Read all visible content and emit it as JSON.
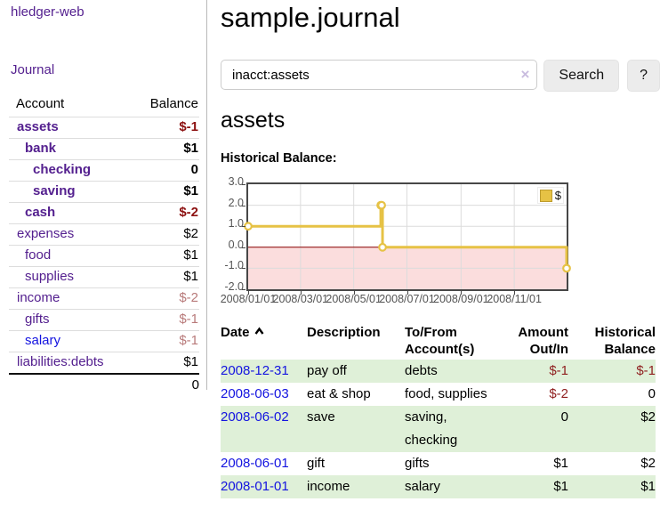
{
  "sidebar": {
    "brand": "hledger-web",
    "nav_journal": "Journal",
    "columns": {
      "account": "Account",
      "balance": "Balance"
    },
    "rows": [
      {
        "account": "assets",
        "balance": "$-1",
        "depth": 1,
        "emphasis": true,
        "balance_class": "neg",
        "link": "visited"
      },
      {
        "account": "bank",
        "balance": "$1",
        "depth": 2,
        "emphasis": true,
        "balance_class": "",
        "link": "visited"
      },
      {
        "account": "checking",
        "balance": "0",
        "depth": 3,
        "emphasis": true,
        "balance_class": "",
        "link": "visited"
      },
      {
        "account": "saving",
        "balance": "$1",
        "depth": 3,
        "emphasis": true,
        "balance_class": "",
        "link": "visited"
      },
      {
        "account": "cash",
        "balance": "$-2",
        "depth": 2,
        "emphasis": true,
        "balance_class": "neg",
        "link": "visited"
      },
      {
        "account": "expenses",
        "balance": "$2",
        "depth": 1,
        "emphasis": false,
        "balance_class": "",
        "link": "visited"
      },
      {
        "account": "food",
        "balance": "$1",
        "depth": 2,
        "emphasis": false,
        "balance_class": "",
        "link": "visited"
      },
      {
        "account": "supplies",
        "balance": "$1",
        "depth": 2,
        "emphasis": false,
        "balance_class": "",
        "link": "visited"
      },
      {
        "account": "income",
        "balance": "$-2",
        "depth": 1,
        "emphasis": false,
        "balance_class": "negmuted",
        "link": "visited"
      },
      {
        "account": "gifts",
        "balance": "$-1",
        "depth": 2,
        "emphasis": false,
        "balance_class": "negmuted",
        "link": "visited"
      },
      {
        "account": "salary",
        "balance": "$-1",
        "depth": 2,
        "emphasis": false,
        "balance_class": "negmuted",
        "link": "unvisited"
      },
      {
        "account": "liabilities:debts",
        "balance": "$1",
        "depth": 1,
        "emphasis": false,
        "balance_class": "",
        "link": "visited"
      }
    ],
    "total": "0"
  },
  "header": {
    "title": "sample.journal"
  },
  "search": {
    "value": "inacct:assets",
    "clear_icon": "×",
    "button_label": "Search",
    "help_label": "?"
  },
  "page": {
    "heading": "assets",
    "chart_label": "Historical Balance:"
  },
  "chart_data": {
    "type": "line",
    "title": "Historical Balance",
    "step": true,
    "grid": true,
    "legend": [
      {
        "label": "$",
        "color": "#e6c245"
      }
    ],
    "legend_position": "top-right",
    "ylim": [
      -2,
      3
    ],
    "yticks": [
      3.0,
      2.0,
      1.0,
      0.0,
      -1.0,
      -2.0
    ],
    "ytick_labels": [
      "3.0",
      "2.0",
      "1.0",
      "0.0",
      "-1.0",
      "-2.0"
    ],
    "xrange": [
      "2008-01-01",
      "2008-12-31"
    ],
    "xtick_labels": [
      "2008/01/01",
      "2008/03/01",
      "2008/05/01",
      "2008/07/01",
      "2008/09/01",
      "2008/11/01"
    ],
    "series": [
      {
        "name": "$",
        "color": "#e6c245",
        "points": [
          [
            "2008-01-01",
            1
          ],
          [
            "2008-06-01",
            2
          ],
          [
            "2008-06-02",
            2
          ],
          [
            "2008-06-03",
            0
          ],
          [
            "2008-12-31",
            -1
          ]
        ]
      }
    ],
    "negative_region_fill": "#fbdddd",
    "zero_line_color": "#8e0000",
    "line_color": "#e6c245",
    "marker_fill": "#ffffff"
  },
  "register": {
    "headers": [
      {
        "label": "Date",
        "align": "left",
        "sort_icon": "chevron-up"
      },
      {
        "label": "Description",
        "align": "left"
      },
      {
        "label": "To/From Account(s)",
        "align": "left"
      },
      {
        "label": "Amount Out/In",
        "align": "right"
      },
      {
        "label": "Historical Balance",
        "align": "right"
      }
    ],
    "rows": [
      {
        "date": "2008-12-31",
        "description": "pay off",
        "accounts": "debts",
        "amount": "$-1",
        "amount_negative": true,
        "balance": "$-1",
        "balance_negative": true
      },
      {
        "date": "2008-06-03",
        "description": "eat & shop",
        "accounts": "food, supplies",
        "amount": "$-2",
        "amount_negative": true,
        "balance": "0",
        "balance_negative": false
      },
      {
        "date": "2008-06-02",
        "description": "save",
        "accounts": "saving, checking",
        "amount": "0",
        "amount_negative": false,
        "balance": "$2",
        "balance_negative": false
      },
      {
        "date": "2008-06-01",
        "description": "gift",
        "accounts": "gifts",
        "amount": "$1",
        "amount_negative": false,
        "balance": "$2",
        "balance_negative": false
      },
      {
        "date": "2008-01-01",
        "description": "income",
        "accounts": "salary",
        "amount": "$1",
        "amount_negative": false,
        "balance": "$1",
        "balance_negative": false
      }
    ]
  },
  "colors": {
    "link_visited_purple": "#54208f",
    "link_blue": "#1414e0",
    "negative_strong": "#8c1010",
    "negative_muted": "#b87a7a",
    "negative_table": "#8f1f1f",
    "row_stripe_green": "#dff0d8",
    "chart_gold": "#e6c245",
    "chart_negative_pink": "#fbdddd",
    "chart_zero_line": "#8e0000"
  }
}
